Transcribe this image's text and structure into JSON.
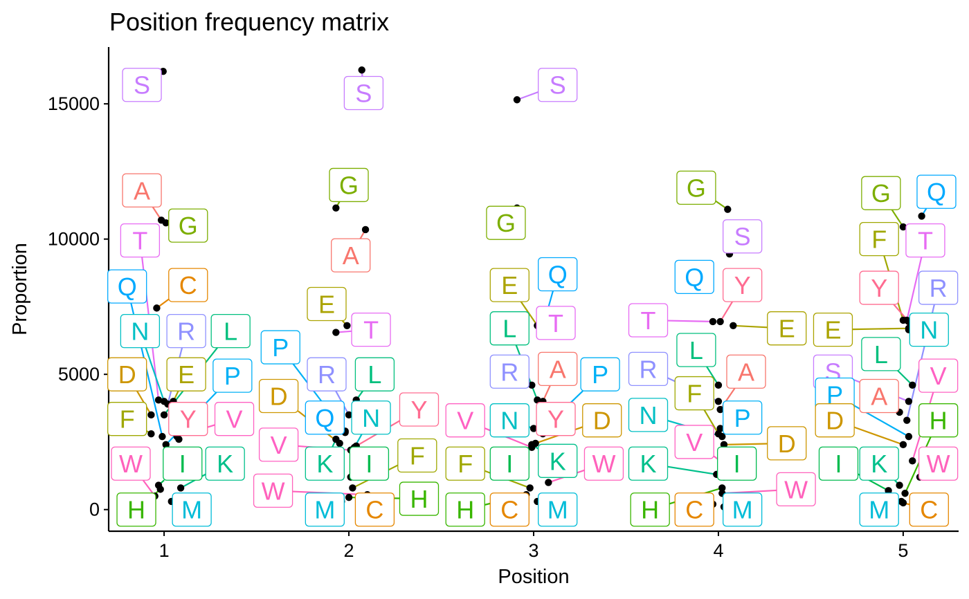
{
  "chart_data": {
    "type": "scatter",
    "title": "Position frequency matrix",
    "xlabel": "Position",
    "ylabel": "Proportion",
    "xlim": [
      0.7,
      5.3
    ],
    "ylim": [
      -800,
      17100
    ],
    "x_ticks": [
      1,
      2,
      3,
      4,
      5
    ],
    "y_ticks": [
      0,
      5000,
      10000,
      15000
    ],
    "grid": false,
    "legend": "none",
    "colors": {
      "A": "#F8766D",
      "C": "#E7861B",
      "D": "#D39200",
      "E": "#B79F00",
      "F": "#93AA00",
      "G": "#5EB300",
      "H": "#00BA38",
      "I": "#00BF74",
      "K": "#00C19F",
      "L": "#00BFC4",
      "M": "#00B9E3",
      "N": "#00ADFA",
      "P": "#619CFF",
      "Q": "#AE87FF",
      "R": "#DB72FB",
      "S": "#F564E3",
      "T": "#FF61C3",
      "V": "#FF5F99",
      "W": "#FF6C91",
      "Y": "#F8766D"
    },
    "points": [
      {
        "pos": 1,
        "x": 0.995,
        "y": 16200,
        "letter": "S",
        "color": "#C77CFF",
        "lx": 0.88,
        "ly": 15700
      },
      {
        "pos": 1,
        "x": 0.985,
        "y": 10700,
        "letter": "A",
        "color": "#F8766D",
        "lx": 0.88,
        "ly": 11800
      },
      {
        "pos": 1,
        "x": 1.01,
        "y": 10600,
        "letter": "G",
        "color": "#7CAE00",
        "lx": 1.13,
        "ly": 10500
      },
      {
        "pos": 1,
        "x": 0.97,
        "y": 4050,
        "letter": "T",
        "color": "#E76BF3",
        "lx": 0.87,
        "ly": 9950
      },
      {
        "pos": 1,
        "x": 0.96,
        "y": 7450,
        "letter": "C",
        "color": "#E58700",
        "lx": 1.13,
        "ly": 8300
      },
      {
        "pos": 1,
        "x": 0.99,
        "y": 2700,
        "letter": "Q",
        "color": "#00A9FF",
        "lx": 0.8,
        "ly": 8250
      },
      {
        "pos": 1,
        "x": 1.0,
        "y": 4000,
        "letter": "N",
        "color": "#00BFC4",
        "lx": 0.87,
        "ly": 6600
      },
      {
        "pos": 1,
        "x": 1.02,
        "y": 3900,
        "letter": "R",
        "color": "#8F91FF",
        "lx": 1.12,
        "ly": 6600
      },
      {
        "pos": 1,
        "x": 1.0,
        "y": 3500,
        "letter": "L",
        "color": "#00BF7D",
        "lx": 1.36,
        "ly": 6600
      },
      {
        "pos": 1,
        "x": 0.93,
        "y": 3500,
        "letter": "D",
        "color": "#CD9600",
        "lx": 0.8,
        "ly": 5000
      },
      {
        "pos": 1,
        "x": 1.05,
        "y": 4000,
        "letter": "E",
        "color": "#ABA300",
        "lx": 1.12,
        "ly": 5000
      },
      {
        "pos": 1,
        "x": 1.01,
        "y": 2400,
        "letter": "P",
        "color": "#00B0F6",
        "lx": 1.37,
        "ly": 4950
      },
      {
        "pos": 1,
        "x": 0.93,
        "y": 2800,
        "letter": "F",
        "color": "#9FA700",
        "lx": 0.8,
        "ly": 3350
      },
      {
        "pos": 1,
        "x": 1.08,
        "y": 2600,
        "letter": "Y",
        "color": "#FF6C91",
        "lx": 1.13,
        "ly": 3350
      },
      {
        "pos": 1,
        "x": 1.07,
        "y": 2700,
        "letter": "V",
        "color": "#FF61C3",
        "lx": 1.38,
        "ly": 3350
      },
      {
        "pos": 1,
        "x": 0.95,
        "y": 500,
        "letter": "W",
        "color": "#FF62BC",
        "lx": 0.82,
        "ly": 1700
      },
      {
        "pos": 1,
        "x": 0.97,
        "y": 900,
        "letter": "I",
        "color": "#00BB4E",
        "lx": 1.1,
        "ly": 1700
      },
      {
        "pos": 1,
        "x": 1.09,
        "y": 800,
        "letter": "K",
        "color": "#00C08B",
        "lx": 1.33,
        "ly": 1700
      },
      {
        "pos": 1,
        "x": 0.98,
        "y": 750,
        "letter": "H",
        "color": "#39B600",
        "lx": 0.85,
        "ly": 0
      },
      {
        "pos": 1,
        "x": 1.04,
        "y": 300,
        "letter": "M",
        "color": "#00BCD8",
        "lx": 1.15,
        "ly": 0
      },
      {
        "pos": 2,
        "x": 2.07,
        "y": 16250,
        "letter": "S",
        "color": "#C77CFF",
        "lx": 2.08,
        "ly": 15400
      },
      {
        "pos": 2,
        "x": 1.93,
        "y": 11150,
        "letter": "G",
        "color": "#7CAE00",
        "lx": 2.0,
        "ly": 12000
      },
      {
        "pos": 2,
        "x": 2.09,
        "y": 10350,
        "letter": "A",
        "color": "#F8766D",
        "lx": 2.01,
        "ly": 9400
      },
      {
        "pos": 2,
        "x": 1.99,
        "y": 6800,
        "letter": "E",
        "color": "#ABA300",
        "lx": 1.88,
        "ly": 7600
      },
      {
        "pos": 2,
        "x": 1.93,
        "y": 6550,
        "letter": "T",
        "color": "#E76BF3",
        "lx": 2.12,
        "ly": 6650
      },
      {
        "pos": 2,
        "x": 1.98,
        "y": 2850,
        "letter": "P",
        "color": "#00B0F6",
        "lx": 1.63,
        "ly": 6000
      },
      {
        "pos": 2,
        "x": 2.0,
        "y": 3500,
        "letter": "R",
        "color": "#8F91FF",
        "lx": 1.88,
        "ly": 5000
      },
      {
        "pos": 2,
        "x": 2.04,
        "y": 4050,
        "letter": "L",
        "color": "#00BF7D",
        "lx": 2.14,
        "ly": 5000
      },
      {
        "pos": 2,
        "x": 1.95,
        "y": 2450,
        "letter": "D",
        "color": "#CD9600",
        "lx": 1.62,
        "ly": 4200
      },
      {
        "pos": 2,
        "x": 1.98,
        "y": 2900,
        "letter": "Q",
        "color": "#00A9FF",
        "lx": 1.87,
        "ly": 3400
      },
      {
        "pos": 2,
        "x": 2.03,
        "y": 2300,
        "letter": "N",
        "color": "#00BFC4",
        "lx": 2.12,
        "ly": 3400
      },
      {
        "pos": 2,
        "x": 2.04,
        "y": 2350,
        "letter": "Y",
        "color": "#FF6C91",
        "lx": 2.38,
        "ly": 3700
      },
      {
        "pos": 2,
        "x": 2.01,
        "y": 2200,
        "letter": "V",
        "color": "#FF61C3",
        "lx": 1.62,
        "ly": 2400
      },
      {
        "pos": 2,
        "x": 1.93,
        "y": 2600,
        "letter": "K",
        "color": "#00C08B",
        "lx": 1.87,
        "ly": 1700
      },
      {
        "pos": 2,
        "x": 2.01,
        "y": 1200,
        "letter": "I",
        "color": "#00BB4E",
        "lx": 2.11,
        "ly": 1700
      },
      {
        "pos": 2,
        "x": 2.02,
        "y": 800,
        "letter": "F",
        "color": "#9FA700",
        "lx": 2.37,
        "ly": 2000
      },
      {
        "pos": 2,
        "x": 2.1,
        "y": 550,
        "letter": "W",
        "color": "#FF62BC",
        "lx": 1.59,
        "ly": 700
      },
      {
        "pos": 2,
        "x": 2.0,
        "y": 450,
        "letter": "H",
        "color": "#39B600",
        "lx": 2.38,
        "ly": 400
      },
      {
        "pos": 2,
        "x": 1.96,
        "y": 300,
        "letter": "M",
        "color": "#00BCD8",
        "lx": 1.87,
        "ly": 0
      },
      {
        "pos": 2,
        "x": 2.06,
        "y": 350,
        "letter": "C",
        "color": "#E58700",
        "lx": 2.14,
        "ly": 0
      },
      {
        "pos": 3,
        "x": 2.91,
        "y": 15150,
        "letter": "S",
        "color": "#C77CFF",
        "lx": 3.13,
        "ly": 15700
      },
      {
        "pos": 3,
        "x": 2.91,
        "y": 11150,
        "letter": "G",
        "color": "#7CAE00",
        "lx": 2.85,
        "ly": 10600
      },
      {
        "pos": 3,
        "x": 3.05,
        "y": 6750,
        "letter": "Q",
        "color": "#00A9FF",
        "lx": 3.13,
        "ly": 8700
      },
      {
        "pos": 3,
        "x": 3.02,
        "y": 6800,
        "letter": "E",
        "color": "#ABA300",
        "lx": 2.87,
        "ly": 8300
      },
      {
        "pos": 3,
        "x": 3.06,
        "y": 6600,
        "letter": "T",
        "color": "#E76BF3",
        "lx": 3.12,
        "ly": 6900
      },
      {
        "pos": 3,
        "x": 3.02,
        "y": 4050,
        "letter": "L",
        "color": "#00BF7D",
        "lx": 2.87,
        "ly": 6700
      },
      {
        "pos": 3,
        "x": 2.99,
        "y": 4600,
        "letter": "R",
        "color": "#8F91FF",
        "lx": 2.87,
        "ly": 5100
      },
      {
        "pos": 3,
        "x": 3.05,
        "y": 4000,
        "letter": "A",
        "color": "#F8766D",
        "lx": 3.13,
        "ly": 5200
      },
      {
        "pos": 3,
        "x": 3.04,
        "y": 2900,
        "letter": "P",
        "color": "#00B0F6",
        "lx": 3.36,
        "ly": 5000
      },
      {
        "pos": 3,
        "x": 3.01,
        "y": 2450,
        "letter": "D",
        "color": "#CD9600",
        "lx": 3.37,
        "ly": 3300
      },
      {
        "pos": 3,
        "x": 2.99,
        "y": 2300,
        "letter": "V",
        "color": "#FF61C3",
        "lx": 2.63,
        "ly": 3300
      },
      {
        "pos": 3,
        "x": 3.0,
        "y": 3000,
        "letter": "N",
        "color": "#00BFC4",
        "lx": 2.87,
        "ly": 3300
      },
      {
        "pos": 3,
        "x": 3.05,
        "y": 2800,
        "letter": "Y",
        "color": "#FF6C91",
        "lx": 3.12,
        "ly": 3350
      },
      {
        "pos": 3,
        "x": 2.99,
        "y": 2400,
        "letter": "K",
        "color": "#00C08B",
        "lx": 3.13,
        "ly": 1800
      },
      {
        "pos": 3,
        "x": 2.93,
        "y": 1500,
        "letter": "I",
        "color": "#00BB4E",
        "lx": 2.87,
        "ly": 1700
      },
      {
        "pos": 3,
        "x": 2.98,
        "y": 800,
        "letter": "F",
        "color": "#9FA700",
        "lx": 2.63,
        "ly": 1700
      },
      {
        "pos": 3,
        "x": 3.08,
        "y": 1000,
        "letter": "W",
        "color": "#FF62BC",
        "lx": 3.38,
        "ly": 1700
      },
      {
        "pos": 3,
        "x": 2.96,
        "y": 550,
        "letter": "H",
        "color": "#39B600",
        "lx": 2.63,
        "ly": 0
      },
      {
        "pos": 3,
        "x": 2.95,
        "y": 100,
        "letter": "C",
        "color": "#E58700",
        "lx": 2.87,
        "ly": 0
      },
      {
        "pos": 3,
        "x": 3.02,
        "y": 300,
        "letter": "M",
        "color": "#00BCD8",
        "lx": 3.13,
        "ly": 0
      },
      {
        "pos": 4,
        "x": 4.05,
        "y": 11100,
        "letter": "G",
        "color": "#7CAE00",
        "lx": 3.88,
        "ly": 11900
      },
      {
        "pos": 4,
        "x": 4.06,
        "y": 9450,
        "letter": "S",
        "color": "#C77CFF",
        "lx": 4.13,
        "ly": 10100
      },
      {
        "pos": 4,
        "x": 3.94,
        "y": 8200,
        "letter": "Q",
        "color": "#00A9FF",
        "lx": 3.87,
        "ly": 8600
      },
      {
        "pos": 4,
        "x": 4.01,
        "y": 6950,
        "letter": "Y",
        "color": "#FF6C91",
        "lx": 4.13,
        "ly": 8300
      },
      {
        "pos": 4,
        "x": 3.97,
        "y": 6950,
        "letter": "T",
        "color": "#E76BF3",
        "lx": 3.62,
        "ly": 7000
      },
      {
        "pos": 4,
        "x": 4.08,
        "y": 6800,
        "letter": "E",
        "color": "#ABA300",
        "lx": 4.37,
        "ly": 6700
      },
      {
        "pos": 4,
        "x": 4.0,
        "y": 4600,
        "letter": "L",
        "color": "#00BF7D",
        "lx": 3.88,
        "ly": 5900
      },
      {
        "pos": 4,
        "x": 4.0,
        "y": 4000,
        "letter": "R",
        "color": "#8F91FF",
        "lx": 3.62,
        "ly": 5200
      },
      {
        "pos": 4,
        "x": 4.01,
        "y": 3700,
        "letter": "A",
        "color": "#F8766D",
        "lx": 4.15,
        "ly": 5100
      },
      {
        "pos": 4,
        "x": 4.0,
        "y": 2800,
        "letter": "F",
        "color": "#9FA700",
        "lx": 3.87,
        "ly": 4300
      },
      {
        "pos": 4,
        "x": 4.02,
        "y": 2700,
        "letter": "N",
        "color": "#00BFC4",
        "lx": 3.62,
        "ly": 3500
      },
      {
        "pos": 4,
        "x": 4.01,
        "y": 3000,
        "letter": "P",
        "color": "#00B0F6",
        "lx": 4.13,
        "ly": 3400
      },
      {
        "pos": 4,
        "x": 4.03,
        "y": 2400,
        "letter": "D",
        "color": "#CD9600",
        "lx": 4.37,
        "ly": 2450
      },
      {
        "pos": 4,
        "x": 4.03,
        "y": 1700,
        "letter": "V",
        "color": "#FF61C3",
        "lx": 3.87,
        "ly": 2500
      },
      {
        "pos": 4,
        "x": 3.99,
        "y": 1300,
        "letter": "K",
        "color": "#00C08B",
        "lx": 3.62,
        "ly": 1700
      },
      {
        "pos": 4,
        "x": 4.03,
        "y": 1200,
        "letter": "I",
        "color": "#00BB4E",
        "lx": 4.1,
        "ly": 1700
      },
      {
        "pos": 4,
        "x": 4.02,
        "y": 600,
        "letter": "W",
        "color": "#FF62BC",
        "lx": 4.42,
        "ly": 750
      },
      {
        "pos": 4,
        "x": 4.02,
        "y": 800,
        "letter": "H",
        "color": "#39B600",
        "lx": 3.63,
        "ly": 0
      },
      {
        "pos": 4,
        "x": 3.97,
        "y": 200,
        "letter": "C",
        "color": "#E58700",
        "lx": 3.87,
        "ly": 0
      },
      {
        "pos": 4,
        "x": 4.03,
        "y": 100,
        "letter": "M",
        "color": "#00BCD8",
        "lx": 4.13,
        "ly": 0
      },
      {
        "pos": 5,
        "x": 5.1,
        "y": 10850,
        "letter": "Q",
        "color": "#00A9FF",
        "lx": 5.18,
        "ly": 11750
      },
      {
        "pos": 5,
        "x": 5.0,
        "y": 10450,
        "letter": "G",
        "color": "#7CAE00",
        "lx": 4.88,
        "ly": 11700
      },
      {
        "pos": 5,
        "x": 5.0,
        "y": 7000,
        "letter": "F",
        "color": "#9FA700",
        "lx": 4.87,
        "ly": 10000
      },
      {
        "pos": 5,
        "x": 5.02,
        "y": 7000,
        "letter": "T",
        "color": "#E76BF3",
        "lx": 5.12,
        "ly": 9950
      },
      {
        "pos": 5,
        "x": 5.03,
        "y": 6950,
        "letter": "Y",
        "color": "#FF6C91",
        "lx": 4.87,
        "ly": 8200
      },
      {
        "pos": 5,
        "x": 5.02,
        "y": 3300,
        "letter": "R",
        "color": "#8F91FF",
        "lx": 5.19,
        "ly": 8200
      },
      {
        "pos": 5,
        "x": 5.03,
        "y": 6700,
        "letter": "E",
        "color": "#ABA300",
        "lx": 4.62,
        "ly": 6650
      },
      {
        "pos": 5,
        "x": 5.03,
        "y": 6650,
        "letter": "N",
        "color": "#00BFC4",
        "lx": 5.14,
        "ly": 6650
      },
      {
        "pos": 5,
        "x": 5.05,
        "y": 4600,
        "letter": "L",
        "color": "#00BF7D",
        "lx": 4.88,
        "ly": 5750
      },
      {
        "pos": 5,
        "x": 5.03,
        "y": 4000,
        "letter": "S",
        "color": "#C77CFF",
        "lx": 4.62,
        "ly": 5100
      },
      {
        "pos": 5,
        "x": 4.98,
        "y": 3600,
        "letter": "A",
        "color": "#F8766D",
        "lx": 4.87,
        "ly": 4200
      },
      {
        "pos": 5,
        "x": 5.03,
        "y": 2700,
        "letter": "P",
        "color": "#00B0F6",
        "lx": 4.63,
        "ly": 4250
      },
      {
        "pos": 5,
        "x": 5.0,
        "y": 2400,
        "letter": "D",
        "color": "#CD9600",
        "lx": 4.63,
        "ly": 3300
      },
      {
        "pos": 5,
        "x": 5.05,
        "y": 1800,
        "letter": "V",
        "color": "#FF61C3",
        "lx": 5.19,
        "ly": 4950
      },
      {
        "pos": 5,
        "x": 5.01,
        "y": 600,
        "letter": "H",
        "color": "#39B600",
        "lx": 5.19,
        "ly": 3300
      },
      {
        "pos": 5,
        "x": 4.98,
        "y": 900,
        "letter": "K",
        "color": "#00C08B",
        "lx": 4.87,
        "ly": 1700
      },
      {
        "pos": 5,
        "x": 4.92,
        "y": 700,
        "letter": "I",
        "color": "#00BB4E",
        "lx": 4.65,
        "ly": 1700
      },
      {
        "pos": 5,
        "x": 5.09,
        "y": 1200,
        "letter": "W",
        "color": "#FF62BC",
        "lx": 5.19,
        "ly": 1700
      },
      {
        "pos": 5,
        "x": 4.99,
        "y": 300,
        "letter": "M",
        "color": "#00BCD8",
        "lx": 4.87,
        "ly": 0
      },
      {
        "pos": 5,
        "x": 5.0,
        "y": 250,
        "letter": "C",
        "color": "#E58700",
        "lx": 5.14,
        "ly": 0
      }
    ]
  }
}
